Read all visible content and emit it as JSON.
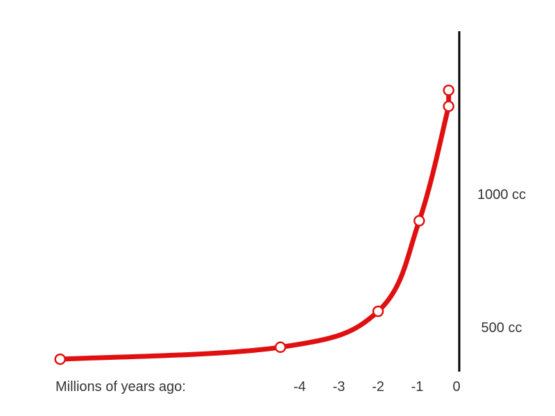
{
  "chart_data": {
    "type": "line",
    "xlabel": "Millions of years ago:",
    "ylabel": "",
    "x_ticks": [
      {
        "value": -4,
        "label": "-4"
      },
      {
        "value": -3,
        "label": "-3"
      },
      {
        "value": -2,
        "label": "-2"
      },
      {
        "value": -1,
        "label": "-1"
      },
      {
        "value": 0,
        "label": "0"
      }
    ],
    "y_ticks": [
      {
        "value": 500,
        "label": "500 cc"
      },
      {
        "value": 1000,
        "label": "1000 cc"
      }
    ],
    "xlim": [
      -10.5,
      0
    ],
    "ylim": [
      340,
      1400
    ],
    "grid": false,
    "legend": "none",
    "colors": {
      "series": "#e01010",
      "axis": "#000000",
      "text": "#333333"
    },
    "series": [
      {
        "points": [
          {
            "x": -10.2,
            "y": 380
          },
          {
            "x": -4.5,
            "y": 425
          },
          {
            "x": -2.0,
            "y": 560
          },
          {
            "x": -0.95,
            "y": 900
          },
          {
            "x": -0.2,
            "y": 1330
          },
          {
            "x": -0.2,
            "y": 1390
          }
        ]
      }
    ]
  }
}
